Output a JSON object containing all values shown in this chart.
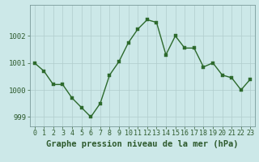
{
  "x": [
    0,
    1,
    2,
    3,
    4,
    5,
    6,
    7,
    8,
    9,
    10,
    11,
    12,
    13,
    14,
    15,
    16,
    17,
    18,
    19,
    20,
    21,
    22,
    23
  ],
  "y": [
    1001.0,
    1000.7,
    1000.2,
    1000.2,
    999.7,
    999.35,
    999.0,
    999.5,
    1000.55,
    1001.05,
    1001.75,
    1002.25,
    1002.6,
    1002.5,
    1001.3,
    1002.0,
    1001.55,
    1001.55,
    1000.85,
    1001.0,
    1000.55,
    1000.45,
    1000.0,
    1000.4
  ],
  "line_color": "#2d6a2d",
  "marker_color": "#2d6a2d",
  "bg_color": "#cce8e8",
  "grid_color": "#b0cccc",
  "axis_label_color": "#2d5a2d",
  "title": "Graphe pression niveau de la mer (hPa)",
  "ylim": [
    998.65,
    1003.15
  ],
  "yticks": [
    999,
    1000,
    1001,
    1002
  ],
  "xticks": [
    0,
    1,
    2,
    3,
    4,
    5,
    6,
    7,
    8,
    9,
    10,
    11,
    12,
    13,
    14,
    15,
    16,
    17,
    18,
    19,
    20,
    21,
    22,
    23
  ],
  "xlim": [
    -0.5,
    23.5
  ],
  "title_fontsize": 7.5,
  "tick_fontsize": 6.0,
  "marker_size": 2.5,
  "linewidth": 1.0
}
